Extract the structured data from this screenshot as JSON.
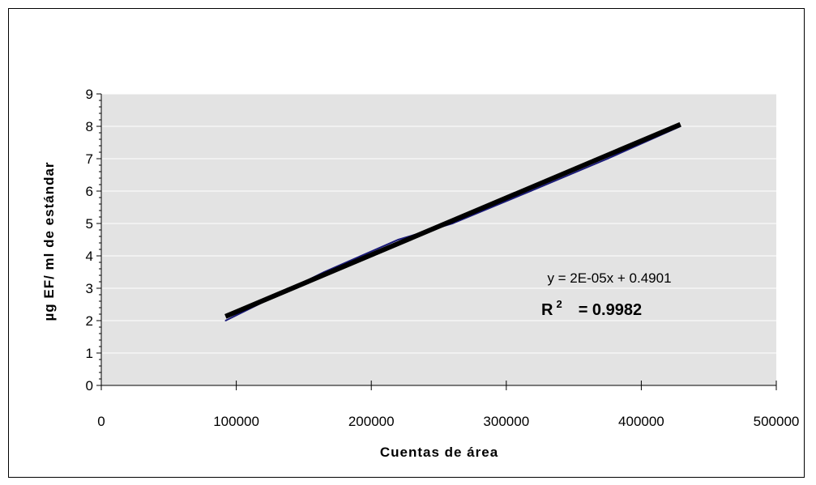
{
  "chart_data": {
    "type": "scatter",
    "xlabel": "Cuentas de área",
    "ylabel": "µg EF/ ml de estándar",
    "xlim": [
      0,
      500000
    ],
    "ylim": [
      0,
      9
    ],
    "x_ticks": [
      "0",
      "100000",
      "200000",
      "300000",
      "400000",
      "500000"
    ],
    "y_ticks": [
      "0",
      "1",
      "2",
      "3",
      "4",
      "5",
      "6",
      "7",
      "8",
      "9"
    ],
    "grid": "horizontal",
    "plot_background": "#e3e3e3",
    "series": [
      {
        "color": "#1a1a7a",
        "points": [
          {
            "x": 92000,
            "y": 2.0
          },
          {
            "x": 165000,
            "y": 3.5
          },
          {
            "x": 220000,
            "y": 4.5
          },
          {
            "x": 260000,
            "y": 5.0
          },
          {
            "x": 318000,
            "y": 6.0
          },
          {
            "x": 375000,
            "y": 7.0
          },
          {
            "x": 429000,
            "y": 8.0
          }
        ]
      }
    ],
    "trendline": {
      "color": "#000000",
      "x_start": 92000,
      "x_end": 429000,
      "y_start": 2.13,
      "y_end": 8.06
    },
    "annotations": {
      "equation": "y = 2E-05x + 0.4901",
      "r2_label": "R",
      "r2_sup": "2",
      "r2_value": "= 0.9982"
    }
  }
}
